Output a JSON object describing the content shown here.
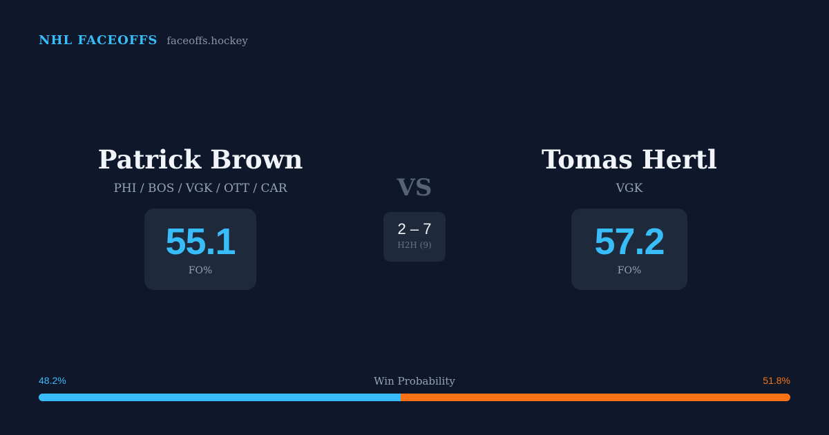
{
  "header": {
    "brand": "NHL FACEOFFS",
    "domain": "faceoffs.hockey"
  },
  "player_left": {
    "name": "Patrick Brown",
    "teams": "PHI / BOS / VGK / OTT / CAR",
    "fo_pct": "55.1",
    "fo_label": "FO%"
  },
  "player_right": {
    "name": "Tomas Hertl",
    "teams": "VGK",
    "fo_pct": "57.2",
    "fo_label": "FO%"
  },
  "matchup": {
    "vs": "VS",
    "h2h_score": "2 – 7",
    "h2h_label": "H2H (9)"
  },
  "win_probability": {
    "title": "Win Probability",
    "left_pct_text": "48.2%",
    "right_pct_text": "51.8%",
    "left_fraction": 0.482,
    "right_fraction": 0.518,
    "left_color": "#38bdf8",
    "right_color": "#f97316"
  },
  "colors": {
    "background": "#0f172a",
    "card": "#1e293b",
    "accent": "#38bdf8",
    "opponent": "#f97316"
  }
}
